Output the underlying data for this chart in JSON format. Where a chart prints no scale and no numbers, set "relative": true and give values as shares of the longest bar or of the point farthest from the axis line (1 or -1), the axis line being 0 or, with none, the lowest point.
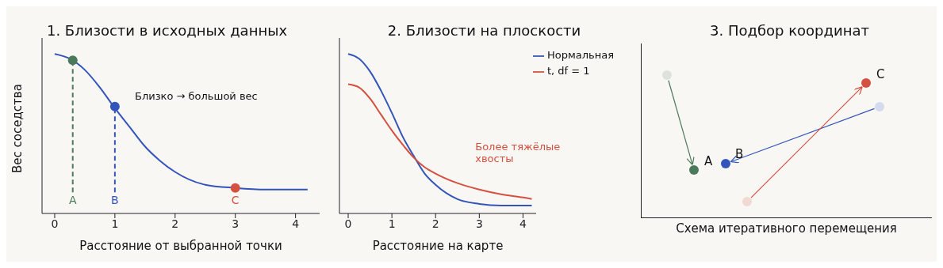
{
  "chart_data": [
    {
      "type": "line",
      "title": "1. Близости в исходных данных",
      "xlabel": "Расстояние от выбранной точки",
      "ylabel": "Вес соседства",
      "relative": true,
      "xlim": [
        -0.21,
        4.4
      ],
      "xticks": [
        0,
        1,
        2,
        3,
        4
      ],
      "series": [
        {
          "color": "#3355bb",
          "x": [
            0,
            0.25,
            0.5,
            0.75,
            1,
            1.25,
            1.5,
            1.75,
            2,
            2.5,
            3,
            3.5,
            4,
            4.2
          ],
          "values": [
            1.0,
            0.97,
            0.9,
            0.79,
            0.66,
            0.54,
            0.42,
            0.33,
            0.26,
            0.18,
            0.16,
            0.15,
            0.15,
            0.15
          ]
        },
        {
          "type": "scatter",
          "marker": "circle",
          "x": [
            0.3,
            1,
            3
          ],
          "values": [
            0.96,
            0.67,
            0.16
          ],
          "colors": [
            "#4a7a5a",
            "#3355bb",
            "#d45040"
          ]
        }
      ],
      "ref_lines": [
        {
          "axis": "x",
          "value": 0.3,
          "color": "#4a7a5a",
          "line_style": "dashed"
        },
        {
          "axis": "x",
          "value": 1,
          "color": "#3355bb",
          "line_style": "dashed"
        }
      ],
      "annotations": [
        "Близко → большой вес",
        "A",
        "B",
        "C"
      ]
    },
    {
      "type": "line",
      "title": "2. Близости на плоскости",
      "xlabel": "Расстояние на карте",
      "relative": true,
      "xlim": [
        -0.2,
        4.3
      ],
      "xticks": [
        0,
        1,
        2,
        3,
        4
      ],
      "legend": "top right",
      "series": [
        {
          "name": "Нормальная",
          "color": "#3355bb",
          "x": [
            0,
            0.25,
            0.5,
            0.75,
            1,
            1.25,
            1.5,
            1.75,
            2,
            2.5,
            3,
            3.5,
            4,
            4.2
          ],
          "values": [
            1.0,
            0.97,
            0.89,
            0.77,
            0.63,
            0.48,
            0.36,
            0.25,
            0.18,
            0.09,
            0.06,
            0.05,
            0.05,
            0.05
          ]
        },
        {
          "name": "t, df = 1",
          "color": "#d45040",
          "x": [
            0,
            0.25,
            0.5,
            0.75,
            1,
            1.25,
            1.5,
            1.75,
            2,
            2.5,
            3,
            3.5,
            4,
            4.2
          ],
          "values": [
            0.81,
            0.79,
            0.72,
            0.62,
            0.52,
            0.43,
            0.35,
            0.29,
            0.25,
            0.19,
            0.15,
            0.12,
            0.1,
            0.09
          ]
        }
      ],
      "annotations": [
        "Более тяжёлые\nхвосты"
      ]
    },
    {
      "type": "other",
      "title": "3. Подбор координат",
      "xlabel": "Схема итеративного перемещения",
      "annotations": [
        "A",
        "B",
        "C"
      ]
    }
  ]
}
